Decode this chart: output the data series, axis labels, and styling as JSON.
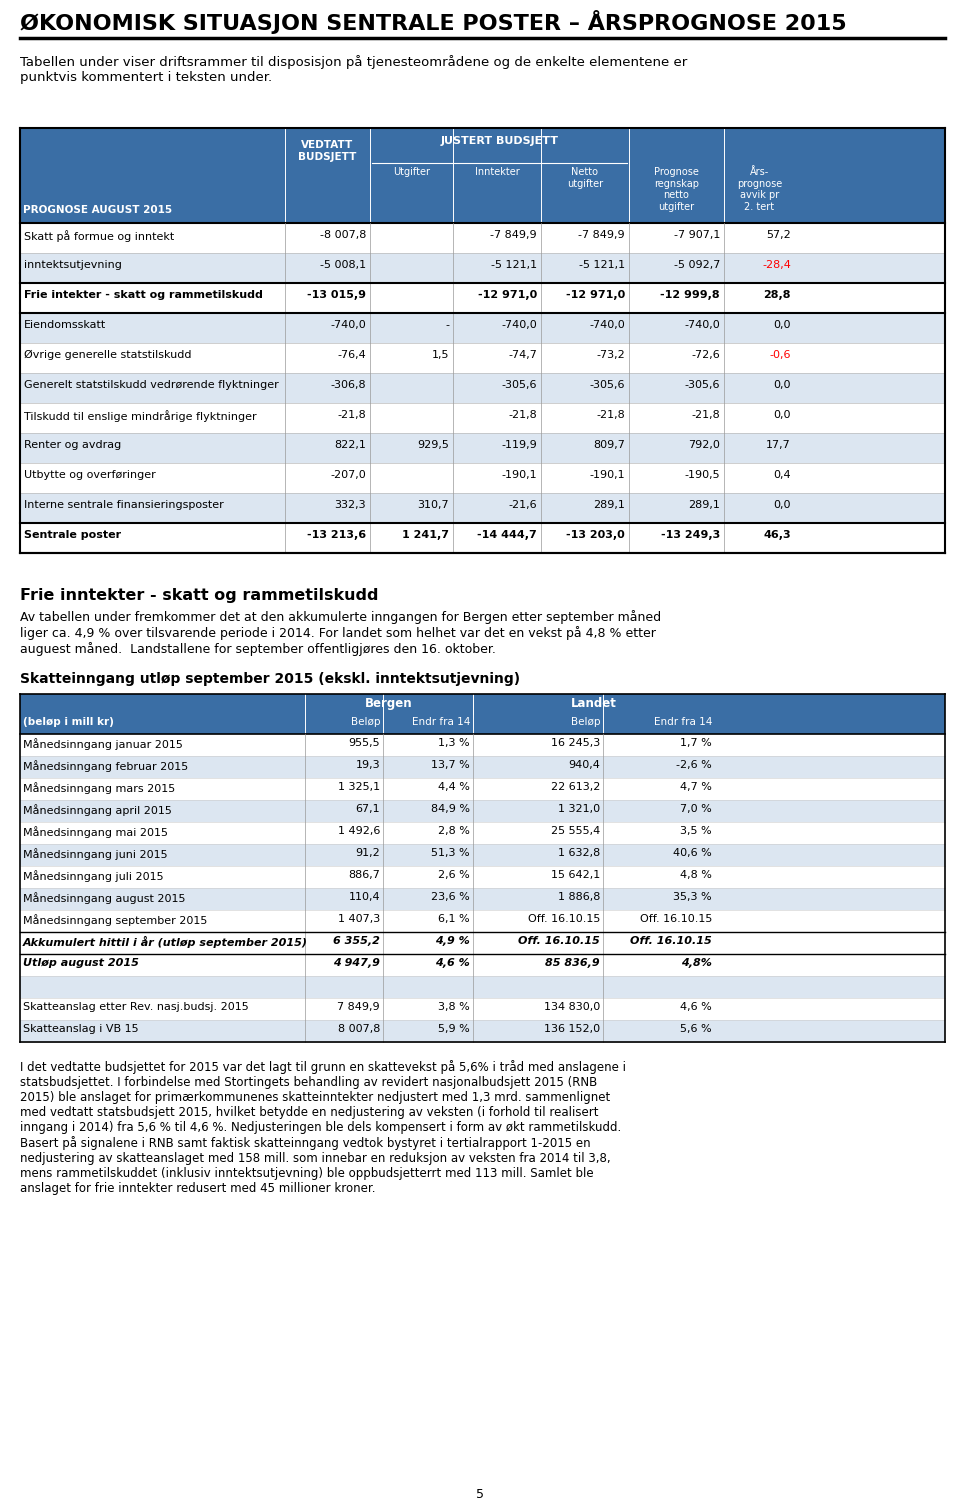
{
  "title": "ØKONOMISK SITUASJON SENTRALE POSTER – ÅRSPROGNOSE 2015",
  "intro_text": "Tabellen under viser driftsrammer til disposisjon på tjenesteområdene og de enkelte elementene er\npunktvis kommentert i teksten under.",
  "header_bg": "#3a6ea5",
  "header_text_color": "#ffffff",
  "row_bg_alt": "#dce6f1",
  "table1_rows": [
    [
      "Skatt på formue og inntekt",
      "-8 007,8",
      "",
      "-7 849,9",
      "-7 849,9",
      "-7 907,1",
      "57,2",
      false,
      false
    ],
    [
      "inntektsutjevning",
      "-5 008,1",
      "",
      "-5 121,1",
      "-5 121,1",
      "-5 092,7",
      "-28,4",
      false,
      true
    ],
    [
      "Frie intekter - skatt og rammetilskudd",
      "-13 015,9",
      "",
      "-12 971,0",
      "-12 971,0",
      "-12 999,8",
      "28,8",
      true,
      false
    ],
    [
      "Eiendomsskatt",
      "-740,0",
      "-",
      "-740,0",
      "-740,0",
      "-740,0",
      "0,0",
      false,
      true
    ],
    [
      "Øvrige generelle statstilskudd",
      "-76,4",
      "1,5",
      "-74,7",
      "-73,2",
      "-72,6",
      "-0,6",
      false,
      false
    ],
    [
      "Generelt statstilskudd vedrørende flyktninger",
      "-306,8",
      "",
      "-305,6",
      "-305,6",
      "-305,6",
      "0,0",
      false,
      true
    ],
    [
      "Tilskudd til enslige mindrårige flyktninger",
      "-21,8",
      "",
      "-21,8",
      "-21,8",
      "-21,8",
      "0,0",
      false,
      false
    ],
    [
      "Renter og avdrag",
      "822,1",
      "929,5",
      "-119,9",
      "809,7",
      "792,0",
      "17,7",
      false,
      true
    ],
    [
      "Utbytte og overføringer",
      "-207,0",
      "",
      "-190,1",
      "-190,1",
      "-190,5",
      "0,4",
      false,
      false
    ],
    [
      "Interne sentrale finansieringsposter",
      "332,3",
      "310,7",
      "-21,6",
      "289,1",
      "289,1",
      "0,0",
      false,
      true
    ],
    [
      "Sentrale poster",
      "-13 213,6",
      "1 241,7",
      "-14 444,7",
      "-13 203,0",
      "-13 249,3",
      "46,3",
      true,
      false
    ]
  ],
  "section2_title": "Frie inntekter - skatt og rammetilskudd",
  "section2_text": "Av tabellen under fremkommer det at den akkumulerte inngangen for Bergen etter september måned\nliger ca. 4,9 % over tilsvarende periode i 2014. For landet som helhet var det en vekst på 4,8 % etter\nauguest måned.  Landstallene for september offentligjøres den 16. oktober.",
  "section3_title": "Skatteinngang utløp september 2015 (ekskl. inntektsutjevning)",
  "table2_rows": [
    [
      "Månedsinngang januar 2015",
      "955,5",
      "1,3 %",
      "16 245,3",
      "1,7 %",
      false
    ],
    [
      "Månedsinngang februar 2015",
      "19,3",
      "13,7 %",
      "940,4",
      "-2,6 %",
      false
    ],
    [
      "Månedsinngang mars 2015",
      "1 325,1",
      "4,4 %",
      "22 613,2",
      "4,7 %",
      false
    ],
    [
      "Månedsinngang april 2015",
      "67,1",
      "84,9 %",
      "1 321,0",
      "7,0 %",
      false
    ],
    [
      "Månedsinngang mai 2015",
      "1 492,6",
      "2,8 %",
      "25 555,4",
      "3,5 %",
      false
    ],
    [
      "Månedsinngang juni 2015",
      "91,2",
      "51,3 %",
      "1 632,8",
      "40,6 %",
      false
    ],
    [
      "Månedsinngang juli 2015",
      "886,7",
      "2,6 %",
      "15 642,1",
      "4,8 %",
      false
    ],
    [
      "Månedsinngang august 2015",
      "110,4",
      "23,6 %",
      "1 886,8",
      "35,3 %",
      false
    ],
    [
      "Månedsinngang september 2015",
      "1 407,3",
      "6,1 %",
      "Off. 16.10.15",
      "Off. 16.10.15",
      false
    ],
    [
      "Akkumulert hittil i år (utløp september 2015)",
      "6 355,2",
      "4,9 %",
      "Off. 16.10.15",
      "Off. 16.10.15",
      true
    ],
    [
      "Utløp august 2015",
      "4 947,9",
      "4,6 %",
      "85 836,9",
      "4,8%",
      true
    ],
    [
      "",
      "",
      "",
      "",
      "",
      false
    ],
    [
      "Skatteanslag etter Rev. nasj.budsj. 2015",
      "7 849,9",
      "3,8 %",
      "134 830,0",
      "4,6 %",
      false
    ],
    [
      "Skatteanslag i VB 15",
      "8 007,8",
      "5,9 %",
      "136 152,0",
      "5,6 %",
      false
    ]
  ],
  "footer_text": "I det vedtatte budsjettet for 2015 var det lagt til grunn en skattevekst på 5,6% i tråd med anslagene i\nstatsbudsjettet. I forbindelse med Stortingets behandling av revidert nasjonalbudsjett 2015 (RNB\n2015) ble anslaget for primærkommunenes skatteinntekter nedjustert med 1,3 mrd. sammenlignet\nmed vedtatt statsbudsjett 2015, hvilket betydde en nedjustering av veksten (i forhold til realisert\ninngang i 2014) fra 5,6 % til 4,6 %. Nedjusteringen ble dels kompensert i form av økt rammetilskudd.\nBasert på signalene i RNB samt faktisk skatteinngang vedtok bystyret i tertialrapport 1-2015 en\nnedjustering av skatteanslaget med 158 mill. som innebar en reduksjon av veksten fra 2014 til 3,8,\nmens rammetilskuddet (inklusiv inntektsutjevning) ble oppbudsjetterrt med 113 mill. Samlet ble\nanslaget for frie inntekter redusert med 45 millioner kroner.",
  "page_number": "5"
}
